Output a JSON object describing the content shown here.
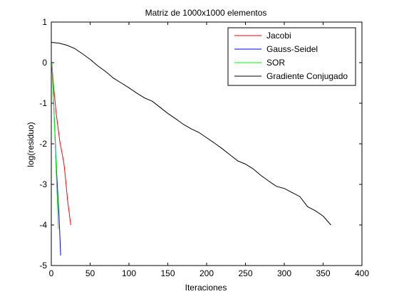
{
  "chart_data": {
    "type": "line",
    "title": "Matriz de 1000x1000 elementos",
    "xlabel": "Iteraciones",
    "ylabel": "log(residuo)",
    "xlim": [
      0,
      400
    ],
    "ylim": [
      -5,
      1
    ],
    "xticks": [
      0,
      50,
      100,
      150,
      200,
      250,
      300,
      350,
      400
    ],
    "yticks": [
      1,
      0,
      -1,
      -2,
      -3,
      -4,
      -5
    ],
    "grid": false,
    "legend_position": "top-right",
    "series": [
      {
        "name": "Jacobi",
        "color": "#ff0000",
        "x": [
          1,
          2,
          3,
          4,
          5,
          6,
          7,
          8,
          9,
          10,
          11,
          12,
          13,
          14,
          15,
          16,
          17,
          18,
          19,
          20,
          21,
          22,
          23,
          24,
          25
        ],
        "y": [
          -0.1,
          -0.35,
          -0.6,
          -0.8,
          -1.0,
          -1.2,
          -1.35,
          -1.5,
          -1.65,
          -1.8,
          -1.95,
          -2.05,
          -2.15,
          -2.25,
          -2.35,
          -2.45,
          -2.6,
          -2.8,
          -3.0,
          -3.2,
          -3.4,
          -3.55,
          -3.7,
          -3.85,
          -4.0
        ]
      },
      {
        "name": "Gauss-Seidel",
        "color": "#0000ff",
        "x": [
          1,
          2,
          3,
          4,
          5,
          6,
          7,
          8,
          9,
          10,
          11,
          12
        ],
        "y": [
          -0.15,
          -0.55,
          -1.0,
          -1.45,
          -1.9,
          -2.35,
          -2.75,
          -3.1,
          -3.45,
          -3.8,
          -4.25,
          -4.75
        ]
      },
      {
        "name": "SOR",
        "color": "#00ff00",
        "x": [
          1,
          2,
          3,
          4,
          5,
          6,
          7,
          8,
          9
        ],
        "y": [
          0.0,
          -0.5,
          -1.0,
          -1.5,
          -2.0,
          -2.5,
          -3.0,
          -3.5,
          -4.1
        ]
      },
      {
        "name": "Gradiente Conjugado",
        "color": "#000000",
        "x": [
          0,
          10,
          20,
          30,
          40,
          50,
          60,
          70,
          80,
          90,
          100,
          110,
          120,
          130,
          140,
          150,
          160,
          170,
          180,
          190,
          200,
          210,
          220,
          230,
          240,
          250,
          260,
          270,
          280,
          290,
          300,
          310,
          320,
          330,
          340,
          350,
          360
        ],
        "y": [
          0.5,
          0.48,
          0.43,
          0.35,
          0.22,
          0.08,
          -0.08,
          -0.22,
          -0.38,
          -0.5,
          -0.62,
          -0.75,
          -0.87,
          -0.95,
          -1.1,
          -1.25,
          -1.38,
          -1.52,
          -1.63,
          -1.72,
          -1.85,
          -1.98,
          -2.12,
          -2.27,
          -2.42,
          -2.5,
          -2.62,
          -2.78,
          -2.92,
          -3.05,
          -3.1,
          -3.2,
          -3.3,
          -3.55,
          -3.65,
          -3.78,
          -4.0
        ]
      }
    ]
  }
}
